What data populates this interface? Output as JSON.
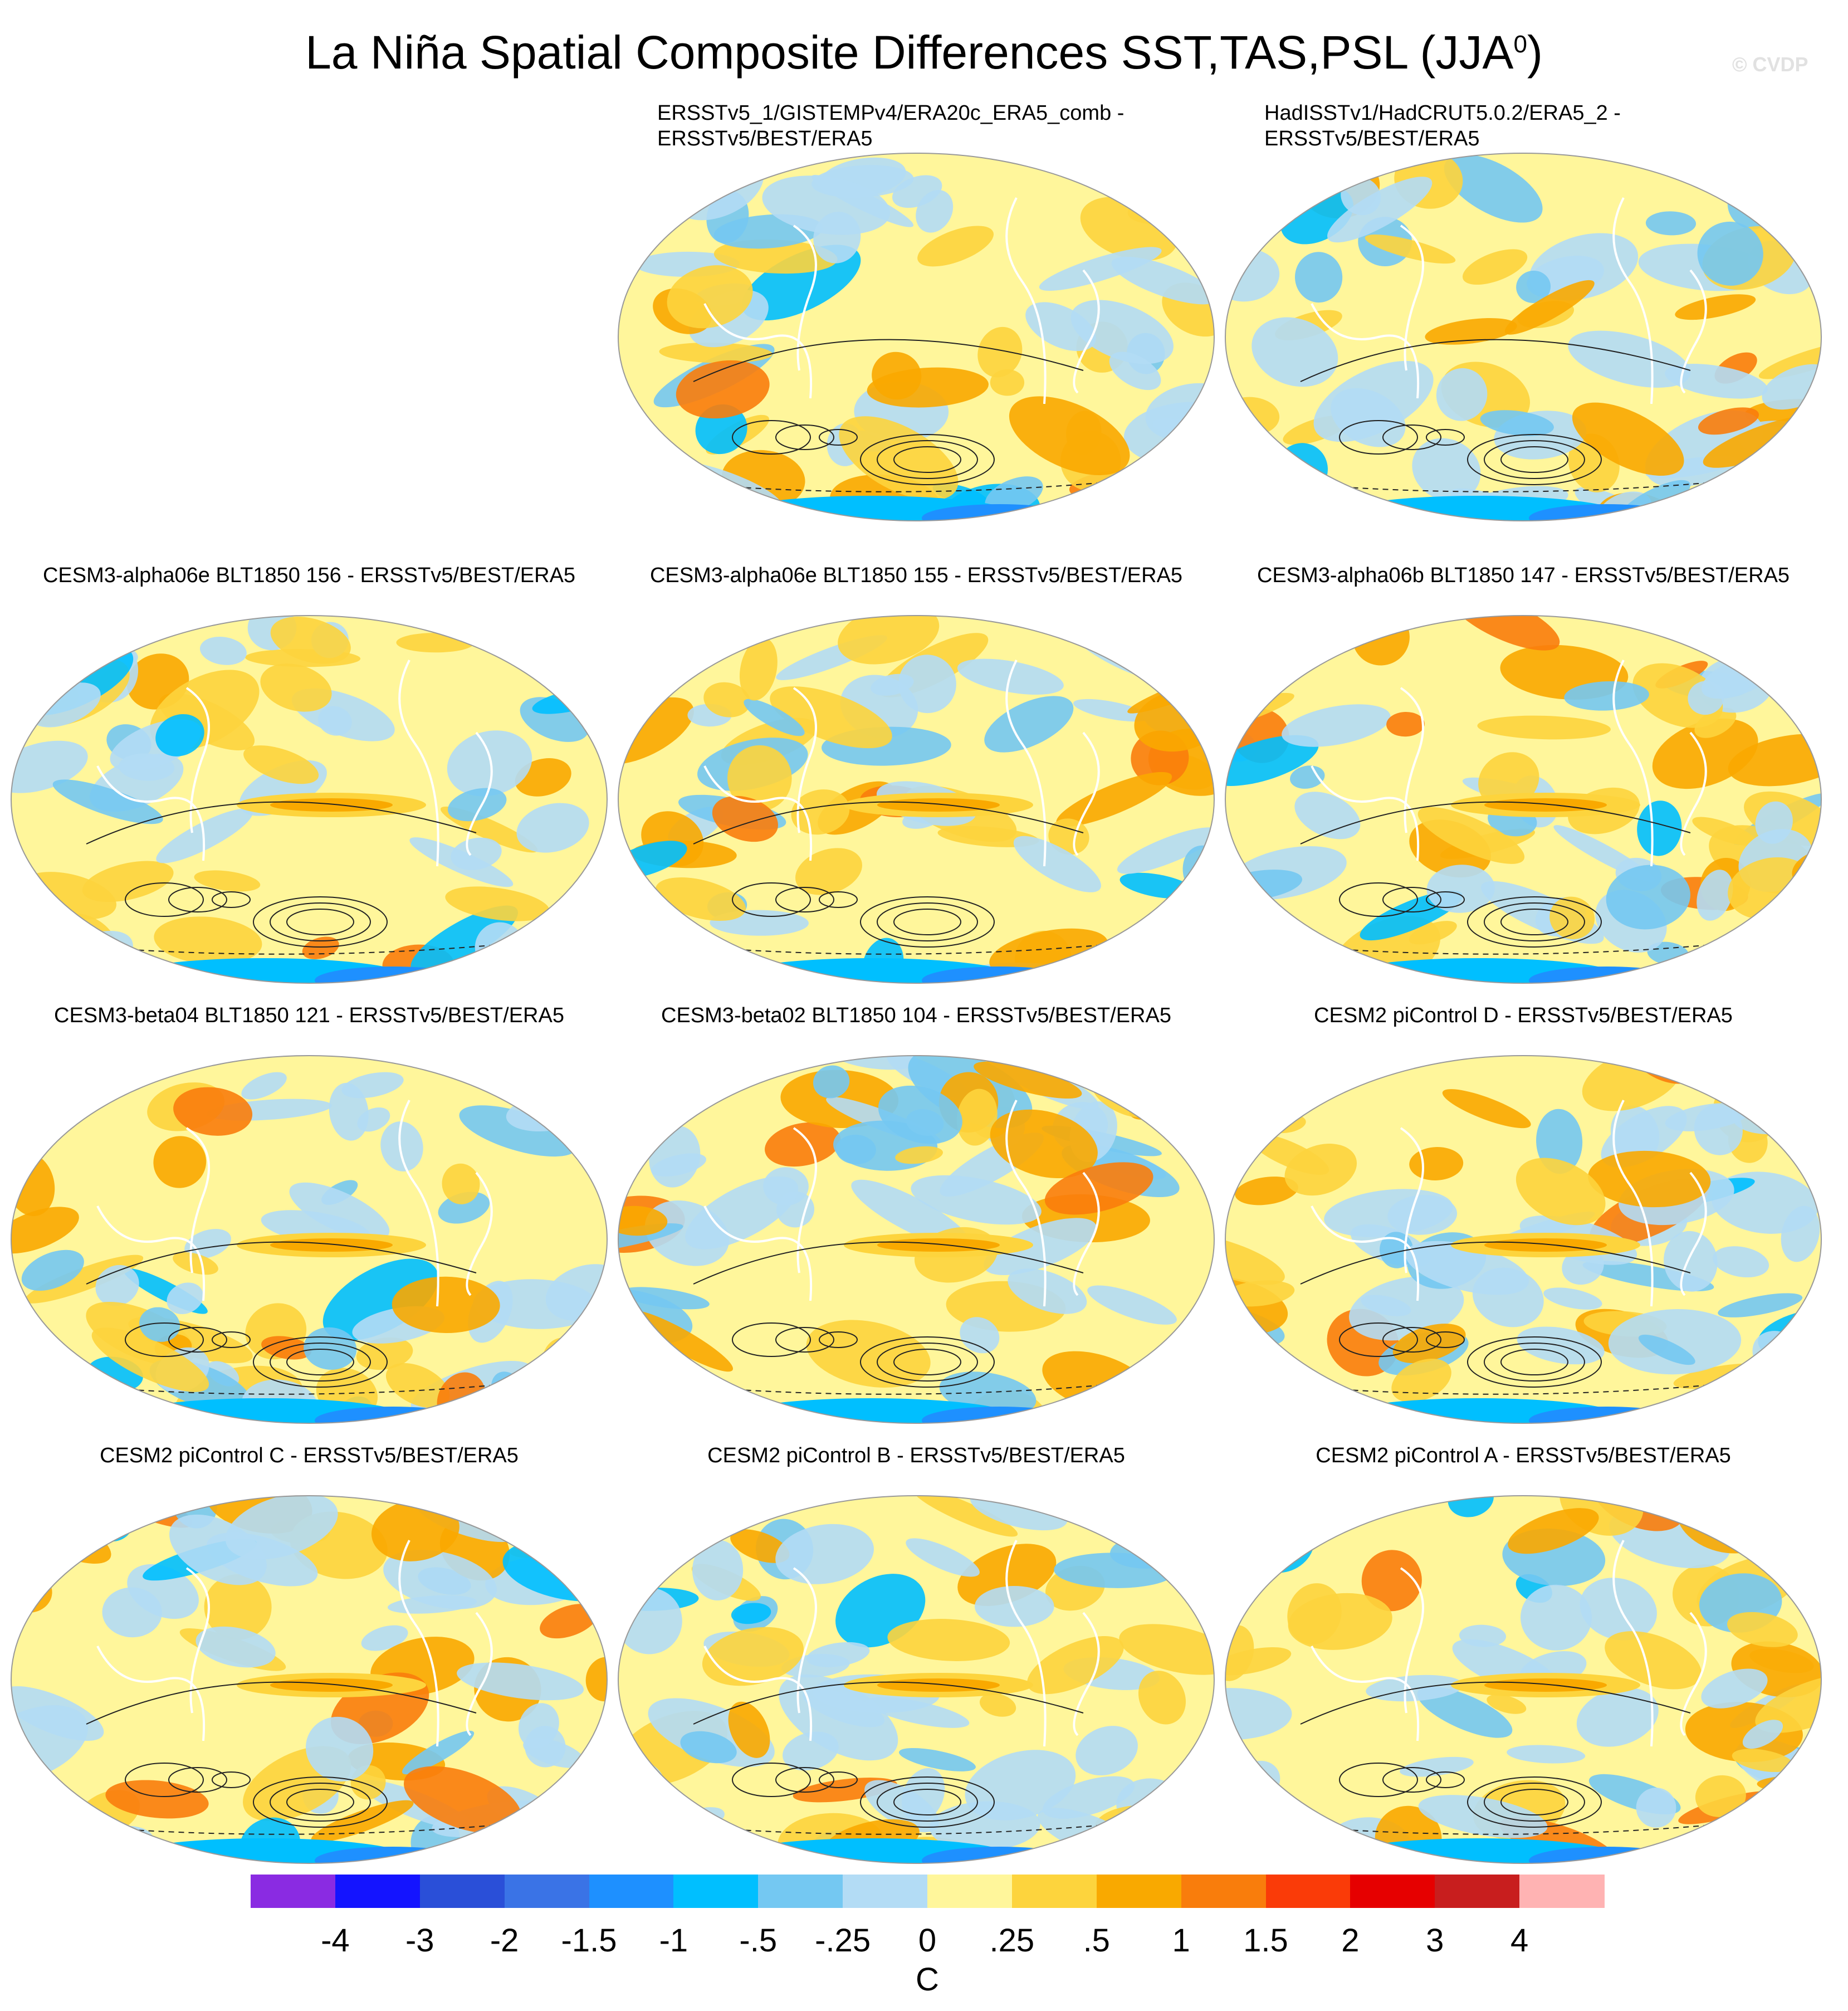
{
  "title": "La Niña Spatial Composite Differences SST,TAS,PSL (JJA",
  "title_sup": "0",
  "title_close": ")",
  "watermark": "© CVDP",
  "panels": [
    {
      "line1": "ERSSTv5_1/GISTEMPv4/ERA20c_ERA5_comb -",
      "line2": "ERSSTv5/BEST/ERA5",
      "style": "obs"
    },
    {
      "line1": "HadISSTv1/HadCRUT5.0.2/ERA5_2 -",
      "line2": "ERSSTv5/BEST/ERA5",
      "style": "obs"
    },
    {
      "line1": "CESM3-alpha06e BLT1850 156 - ERSSTv5/BEST/ERA5",
      "line2": "",
      "style": "model"
    },
    {
      "line1": "CESM3-alpha06e BLT1850 155 - ERSSTv5/BEST/ERA5",
      "line2": "",
      "style": "model"
    },
    {
      "line1": "CESM3-alpha06b BLT1850 147 - ERSSTv5/BEST/ERA5",
      "line2": "",
      "style": "model"
    },
    {
      "line1": "CESM3-beta04 BLT1850 121 - ERSSTv5/BEST/ERA5",
      "line2": "",
      "style": "model"
    },
    {
      "line1": "CESM3-beta02 BLT1850 104 - ERSSTv5/BEST/ERA5",
      "line2": "",
      "style": "model"
    },
    {
      "line1": "CESM2 piControl D - ERSSTv5/BEST/ERA5",
      "line2": "",
      "style": "model"
    },
    {
      "line1": "CESM2 piControl C - ERSSTv5/BEST/ERA5",
      "line2": "",
      "style": "model"
    },
    {
      "line1": "CESM2 piControl B - ERSSTv5/BEST/ERA5",
      "line2": "",
      "style": "model"
    },
    {
      "line1": "CESM2 piControl A - ERSSTv5/BEST/ERA5",
      "line2": "",
      "style": "model"
    }
  ],
  "colorbar": {
    "colors": [
      "#8a2be2",
      "#1414ff",
      "#2a4fd8",
      "#3a73e6",
      "#1e90ff",
      "#00bfff",
      "#74c8f2",
      "#b3dcf5",
      "#fff69b",
      "#fdd43d",
      "#f9a900",
      "#f97d0c",
      "#fa3b08",
      "#e60000",
      "#c81e1e",
      "#ffb3b3"
    ],
    "ticks": [
      "-4",
      "-3",
      "-2",
      "-1.5",
      "-1",
      "-.5",
      "-.25",
      "0",
      ".25",
      ".5",
      "1",
      "1.5",
      "2",
      "3",
      "4"
    ],
    "unit": "C"
  }
}
